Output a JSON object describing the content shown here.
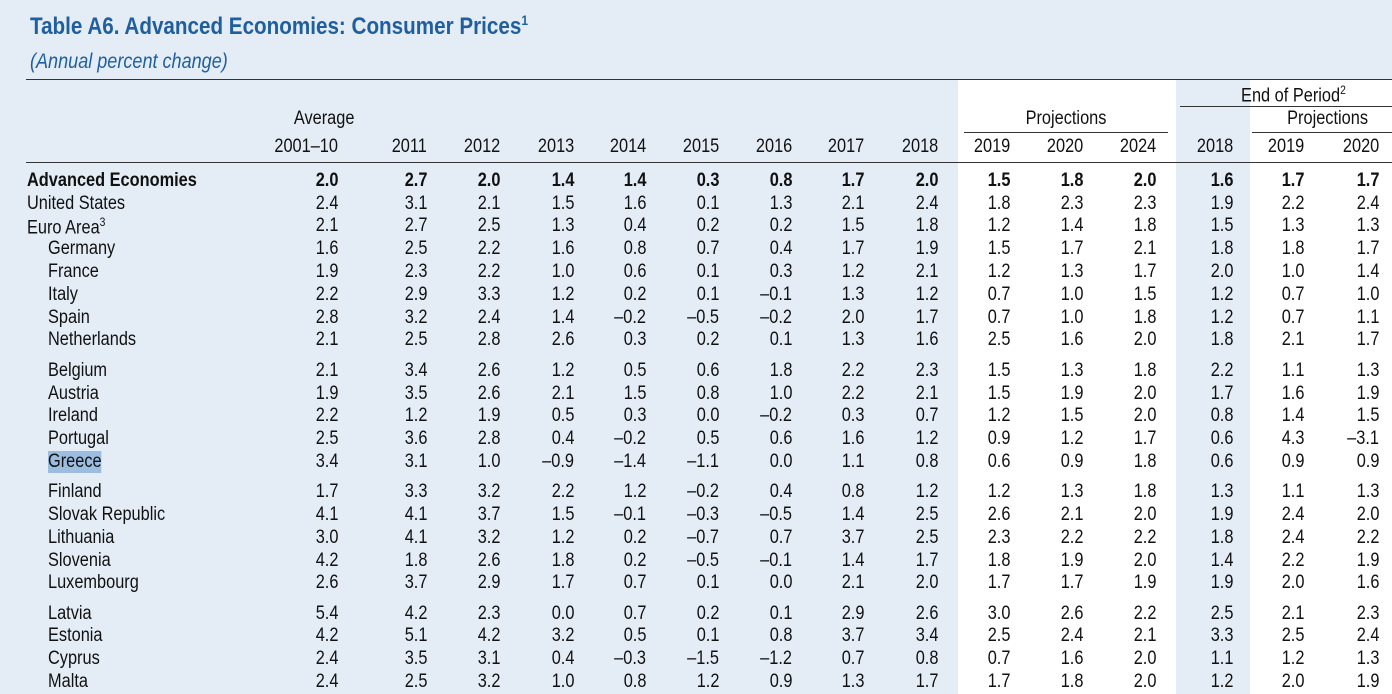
{
  "title": "Table A6. Advanced Economies: Consumer Prices",
  "title_footnote": "1",
  "subtitle": "(Annual percent change)",
  "header": {
    "average_label": "Average",
    "projections_label": "Projections",
    "end_of_period_label": "End of Period",
    "end_of_period_footnote": "2",
    "eop_projections_label": "Projections",
    "columns": [
      "2001–10",
      "2011",
      "2012",
      "2013",
      "2014",
      "2015",
      "2016",
      "2017",
      "2018",
      "2019",
      "2020",
      "2024",
      "2018",
      "2019",
      "2020"
    ]
  },
  "rows": [
    {
      "label": "Advanced Economies",
      "footnote": "",
      "values": [
        "2.0",
        "2.7",
        "2.0",
        "1.4",
        "1.4",
        "0.3",
        "0.8",
        "1.7",
        "2.0",
        "1.5",
        "1.8",
        "2.0",
        "1.6",
        "1.7",
        "1.7"
      ]
    },
    {
      "label": "United States",
      "footnote": "",
      "values": [
        "2.4",
        "3.1",
        "2.1",
        "1.5",
        "1.6",
        "0.1",
        "1.3",
        "2.1",
        "2.4",
        "1.8",
        "2.3",
        "2.3",
        "1.9",
        "2.2",
        "2.4"
      ]
    },
    {
      "label": "Euro Area",
      "footnote": "3",
      "values": [
        "2.1",
        "2.7",
        "2.5",
        "1.3",
        "0.4",
        "0.2",
        "0.2",
        "1.5",
        "1.8",
        "1.2",
        "1.4",
        "1.8",
        "1.5",
        "1.3",
        "1.3"
      ]
    },
    {
      "label": "Germany",
      "footnote": "",
      "values": [
        "1.6",
        "2.5",
        "2.2",
        "1.6",
        "0.8",
        "0.7",
        "0.4",
        "1.7",
        "1.9",
        "1.5",
        "1.7",
        "2.1",
        "1.8",
        "1.8",
        "1.7"
      ]
    },
    {
      "label": "France",
      "footnote": "",
      "values": [
        "1.9",
        "2.3",
        "2.2",
        "1.0",
        "0.6",
        "0.1",
        "0.3",
        "1.2",
        "2.1",
        "1.2",
        "1.3",
        "1.7",
        "2.0",
        "1.0",
        "1.4"
      ]
    },
    {
      "label": "Italy",
      "footnote": "",
      "values": [
        "2.2",
        "2.9",
        "3.3",
        "1.2",
        "0.2",
        "0.1",
        "–0.1",
        "1.3",
        "1.2",
        "0.7",
        "1.0",
        "1.5",
        "1.2",
        "0.7",
        "1.0"
      ]
    },
    {
      "label": "Spain",
      "footnote": "",
      "values": [
        "2.8",
        "3.2",
        "2.4",
        "1.4",
        "–0.2",
        "–0.5",
        "–0.2",
        "2.0",
        "1.7",
        "0.7",
        "1.0",
        "1.8",
        "1.2",
        "0.7",
        "1.1"
      ]
    },
    {
      "label": "Netherlands",
      "footnote": "",
      "values": [
        "2.1",
        "2.5",
        "2.8",
        "2.6",
        "0.3",
        "0.2",
        "0.1",
        "1.3",
        "1.6",
        "2.5",
        "1.6",
        "2.0",
        "1.8",
        "2.1",
        "1.7"
      ]
    },
    {
      "label": "Belgium",
      "footnote": "",
      "values": [
        "2.1",
        "3.4",
        "2.6",
        "1.2",
        "0.5",
        "0.6",
        "1.8",
        "2.2",
        "2.3",
        "1.5",
        "1.3",
        "1.8",
        "2.2",
        "1.1",
        "1.3"
      ]
    },
    {
      "label": "Austria",
      "footnote": "",
      "values": [
        "1.9",
        "3.5",
        "2.6",
        "2.1",
        "1.5",
        "0.8",
        "1.0",
        "2.2",
        "2.1",
        "1.5",
        "1.9",
        "2.0",
        "1.7",
        "1.6",
        "1.9"
      ]
    },
    {
      "label": "Ireland",
      "footnote": "",
      "values": [
        "2.2",
        "1.2",
        "1.9",
        "0.5",
        "0.3",
        "0.0",
        "–0.2",
        "0.3",
        "0.7",
        "1.2",
        "1.5",
        "2.0",
        "0.8",
        "1.4",
        "1.5"
      ]
    },
    {
      "label": "Portugal",
      "footnote": "",
      "values": [
        "2.5",
        "3.6",
        "2.8",
        "0.4",
        "–0.2",
        "0.5",
        "0.6",
        "1.6",
        "1.2",
        "0.9",
        "1.2",
        "1.7",
        "0.6",
        "4.3",
        "–3.1"
      ]
    },
    {
      "label": "Greece",
      "footnote": "",
      "values": [
        "3.4",
        "3.1",
        "1.0",
        "–0.9",
        "–1.4",
        "–1.1",
        "0.0",
        "1.1",
        "0.8",
        "0.6",
        "0.9",
        "1.8",
        "0.6",
        "0.9",
        "0.9"
      ]
    },
    {
      "label": "Finland",
      "footnote": "",
      "values": [
        "1.7",
        "3.3",
        "3.2",
        "2.2",
        "1.2",
        "–0.2",
        "0.4",
        "0.8",
        "1.2",
        "1.2",
        "1.3",
        "1.8",
        "1.3",
        "1.1",
        "1.3"
      ]
    },
    {
      "label": "Slovak Republic",
      "footnote": "",
      "values": [
        "4.1",
        "4.1",
        "3.7",
        "1.5",
        "–0.1",
        "–0.3",
        "–0.5",
        "1.4",
        "2.5",
        "2.6",
        "2.1",
        "2.0",
        "1.9",
        "2.4",
        "2.0"
      ]
    },
    {
      "label": "Lithuania",
      "footnote": "",
      "values": [
        "3.0",
        "4.1",
        "3.2",
        "1.2",
        "0.2",
        "–0.7",
        "0.7",
        "3.7",
        "2.5",
        "2.3",
        "2.2",
        "2.2",
        "1.8",
        "2.4",
        "2.2"
      ]
    },
    {
      "label": "Slovenia",
      "footnote": "",
      "values": [
        "4.2",
        "1.8",
        "2.6",
        "1.8",
        "0.2",
        "–0.5",
        "–0.1",
        "1.4",
        "1.7",
        "1.8",
        "1.9",
        "2.0",
        "1.4",
        "2.2",
        "1.9"
      ]
    },
    {
      "label": "Luxembourg",
      "footnote": "",
      "values": [
        "2.6",
        "3.7",
        "2.9",
        "1.7",
        "0.7",
        "0.1",
        "0.0",
        "2.1",
        "2.0",
        "1.7",
        "1.7",
        "1.9",
        "1.9",
        "2.0",
        "1.6"
      ]
    },
    {
      "label": "Latvia",
      "footnote": "",
      "values": [
        "5.4",
        "4.2",
        "2.3",
        "0.0",
        "0.7",
        "0.2",
        "0.1",
        "2.9",
        "2.6",
        "3.0",
        "2.6",
        "2.2",
        "2.5",
        "2.1",
        "2.3"
      ]
    },
    {
      "label": "Estonia",
      "footnote": "",
      "values": [
        "4.2",
        "5.1",
        "4.2",
        "3.2",
        "0.5",
        "0.1",
        "0.8",
        "3.7",
        "3.4",
        "2.5",
        "2.4",
        "2.1",
        "3.3",
        "2.5",
        "2.4"
      ]
    },
    {
      "label": "Cyprus",
      "footnote": "",
      "values": [
        "2.4",
        "3.5",
        "3.1",
        "0.4",
        "–0.3",
        "–1.5",
        "–1.2",
        "0.7",
        "0.8",
        "0.7",
        "1.6",
        "2.0",
        "1.1",
        "1.2",
        "1.3"
      ]
    },
    {
      "label": "Malta",
      "footnote": "",
      "values": [
        "2.4",
        "2.5",
        "3.2",
        "1.0",
        "0.8",
        "1.2",
        "0.9",
        "1.3",
        "1.7",
        "1.7",
        "1.8",
        "2.0",
        "1.2",
        "2.0",
        "1.9"
      ]
    }
  ]
}
